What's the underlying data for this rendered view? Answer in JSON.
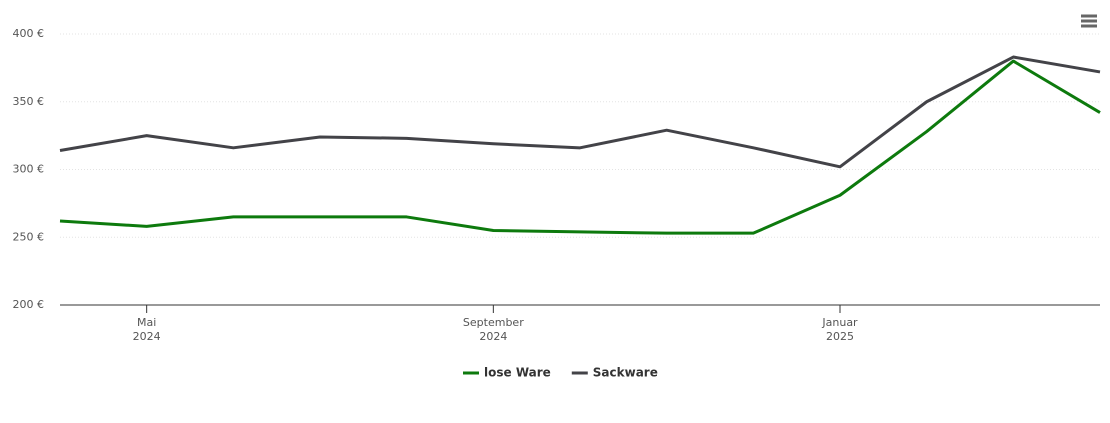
{
  "chart_data": {
    "type": "line",
    "x": [
      "2024-04",
      "2024-05",
      "2024-06",
      "2024-07",
      "2024-08",
      "2024-09",
      "2024-10",
      "2024-11",
      "2024-12",
      "2025-01",
      "2025-02",
      "2025-03",
      "2025-04"
    ],
    "series": [
      {
        "name": "lose Ware",
        "color": "#0d7a0d",
        "values": [
          262,
          258,
          265,
          265,
          265,
          255,
          254,
          253,
          253,
          281,
          328,
          380,
          342
        ]
      },
      {
        "name": "Sackware",
        "color": "#434348",
        "values": [
          314,
          325,
          316,
          324,
          323,
          319,
          316,
          329,
          316,
          302,
          350,
          383,
          372
        ]
      }
    ],
    "xlim": [
      "2024-04",
      "2025-04"
    ],
    "xticks": [
      {
        "value": "2024-05",
        "label": "Mai 2024"
      },
      {
        "value": "2024-09",
        "label": "September 2024"
      },
      {
        "value": "2025-01",
        "label": "Januar 2025"
      }
    ],
    "ylim": [
      200,
      400
    ],
    "yticks": [
      {
        "value": 200,
        "label": "200 €"
      },
      {
        "value": 250,
        "label": "250 €"
      },
      {
        "value": 300,
        "label": "300 €"
      },
      {
        "value": 350,
        "label": "350 €"
      },
      {
        "value": 400,
        "label": "400 €"
      }
    ],
    "grid": true,
    "legend": "bottom"
  }
}
